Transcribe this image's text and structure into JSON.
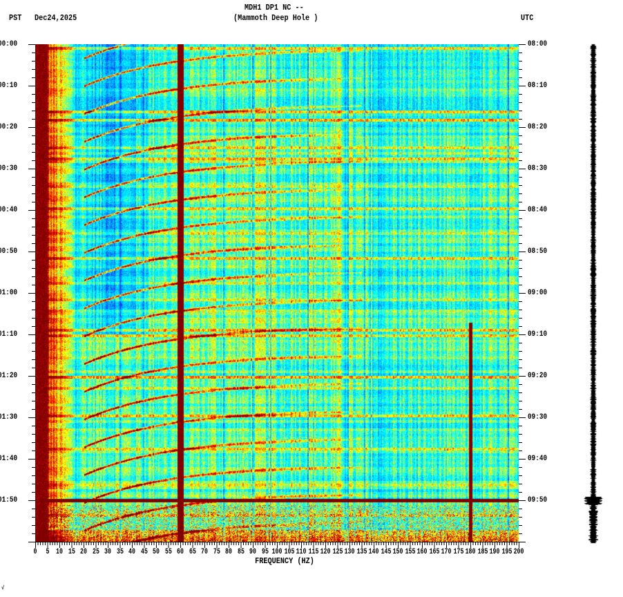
{
  "header": {
    "title_line1": "MDH1 DP1 NC --",
    "title_line2": "(Mammoth Deep Hole )",
    "left_tz": "PST",
    "date": "Dec24,2025",
    "right_tz": "UTC"
  },
  "corner_mark": "√",
  "chart_data": {
    "type": "heatmap",
    "subtype": "spectrogram",
    "title": "MDH1 DP1 NC -- (Mammoth Deep Hole )",
    "xlabel": "FREQUENCY (HZ)",
    "ylabel_left": "PST",
    "ylabel_right": "UTC",
    "xlim": [
      0,
      200
    ],
    "ylim_minutes": [
      0,
      120
    ],
    "x_ticks": [
      "0",
      "5",
      "10",
      "15",
      "20",
      "25",
      "30",
      "35",
      "40",
      "45",
      "50",
      "55",
      "60",
      "65",
      "70",
      "75",
      "80",
      "85",
      "90",
      "95",
      "100",
      "105",
      "110",
      "115",
      "120",
      "125",
      "130",
      "135",
      "140",
      "145",
      "150",
      "155",
      "160",
      "165",
      "170",
      "175",
      "180",
      "185",
      "190",
      "195",
      "200"
    ],
    "y_ticks_left": [
      "00:00",
      "00:10",
      "00:20",
      "00:30",
      "00:40",
      "00:50",
      "01:00",
      "01:10",
      "01:20",
      "01:30",
      "01:40",
      "01:50"
    ],
    "y_ticks_right": [
      "08:00",
      "08:10",
      "08:20",
      "08:30",
      "08:40",
      "08:50",
      "09:00",
      "09:10",
      "09:20",
      "09:30",
      "09:40",
      "09:50"
    ],
    "colorscale": [
      "#0040ff",
      "#0090ff",
      "#00d0ff",
      "#00ffff",
      "#80ff80",
      "#ffff00",
      "#ffa000",
      "#ff2000",
      "#c00000",
      "#800000"
    ],
    "features": {
      "persistent_line_hz": 60,
      "secondary_line_hz": 180,
      "secondary_line_start_minute": 67,
      "broadband_event_minute": 110,
      "chirp_interval_minutes": 6.7,
      "chirp_freq_range_hz": [
        20,
        130
      ],
      "low_freq_high_energy_hz": [
        0,
        5
      ]
    }
  }
}
